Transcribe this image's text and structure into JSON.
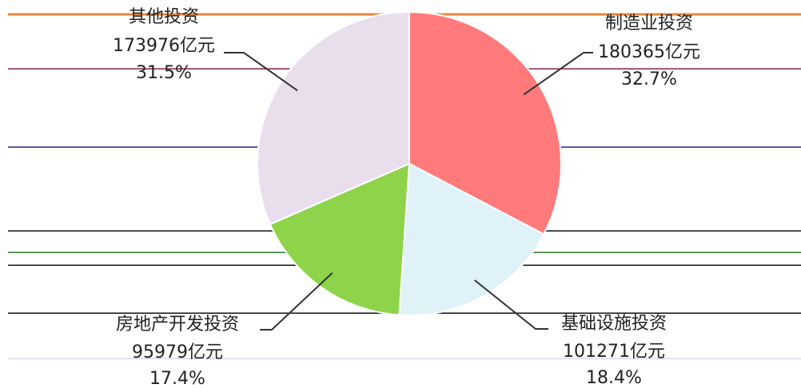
{
  "chart_data": {
    "type": "pie",
    "title": "",
    "unit": "亿元",
    "slices": [
      {
        "name": "制造业投资",
        "value": 180365,
        "value_text": "180365亿元",
        "percent_text": "32.7%",
        "color": "#ff7b7b"
      },
      {
        "name": "基础设施投资",
        "value": 101271,
        "value_text": "101271亿元",
        "percent_text": "18.4%",
        "color": "#dff2f7"
      },
      {
        "name": "房地产开发投资",
        "value": 95979,
        "value_text": "95979亿元",
        "percent_text": "17.4%",
        "color": "#8ed44a"
      },
      {
        "name": "其他投资",
        "value": 173976,
        "value_text": "173976亿元",
        "percent_text": "31.5%",
        "color": "#e9dfec"
      }
    ],
    "start_angle_deg": 0,
    "direction": "clockwise",
    "legend": "none",
    "grid": false
  },
  "decor_colors": {
    "top_line": "#e8873a",
    "line_maroon": "#8a1f4a",
    "line_navy": "#1e2a8c",
    "line_black": "#111111",
    "line_green": "#2a7a2a",
    "line_light": "#d8d8e8",
    "leader": "#333333"
  }
}
